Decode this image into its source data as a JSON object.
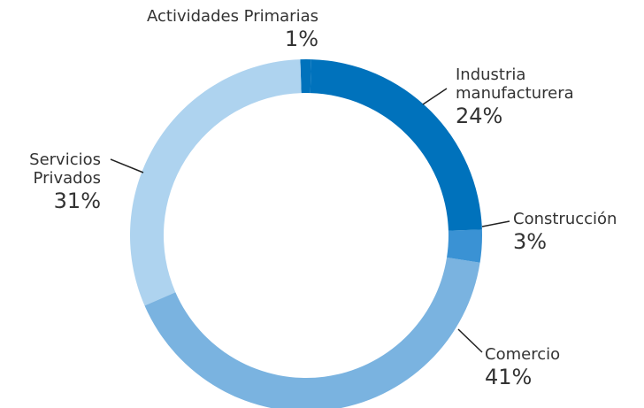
{
  "chart_data": {
    "type": "donut",
    "categories": [
      "Industria manufacturera",
      "Construcción",
      "Comercio",
      "Servicios Privados",
      "Actividades Primarias"
    ],
    "values": [
      24,
      3,
      41,
      31,
      1
    ],
    "value_labels": [
      "24%",
      "3%",
      "41%",
      "31%",
      "1%"
    ],
    "colors": [
      "#0072bc",
      "#3a92d4",
      "#7ab3e0",
      "#aed3ef",
      "#0072bc"
    ]
  }
}
